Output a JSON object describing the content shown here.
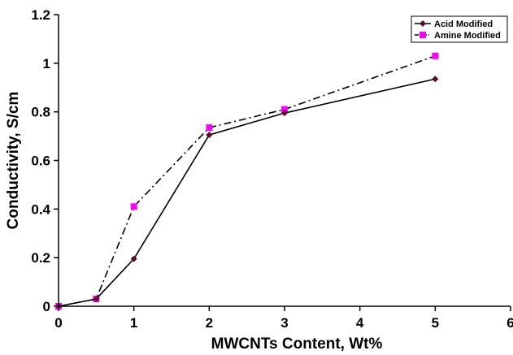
{
  "chart_data": {
    "type": "line",
    "title": "",
    "xlabel": "MWCNTs Content, Wt%",
    "ylabel": "Conductivity, S/cm",
    "xlim": [
      0,
      6
    ],
    "ylim": [
      0,
      1.2
    ],
    "x_ticks": [
      "0",
      "1",
      "2",
      "3",
      "4",
      "5",
      "6"
    ],
    "y_ticks": [
      "0",
      "0.2",
      "0.4",
      "0.6",
      "0.8",
      "1",
      "1.2"
    ],
    "grid": false,
    "legend_position": "top-right",
    "series": [
      {
        "name": "Acid Modified",
        "color": "#5a0a2a",
        "line_style": "solid",
        "marker": "diamond",
        "x": [
          0,
          0.5,
          1,
          2,
          3,
          5
        ],
        "y": [
          0,
          0.03,
          0.195,
          0.705,
          0.795,
          0.935
        ]
      },
      {
        "name": "Amine Modified",
        "color": "#ff00ff",
        "line_style": "dash-dot",
        "marker": "square",
        "x": [
          0,
          0.5,
          1,
          2,
          3,
          5
        ],
        "y": [
          0,
          0.03,
          0.41,
          0.735,
          0.81,
          1.03
        ]
      }
    ]
  }
}
